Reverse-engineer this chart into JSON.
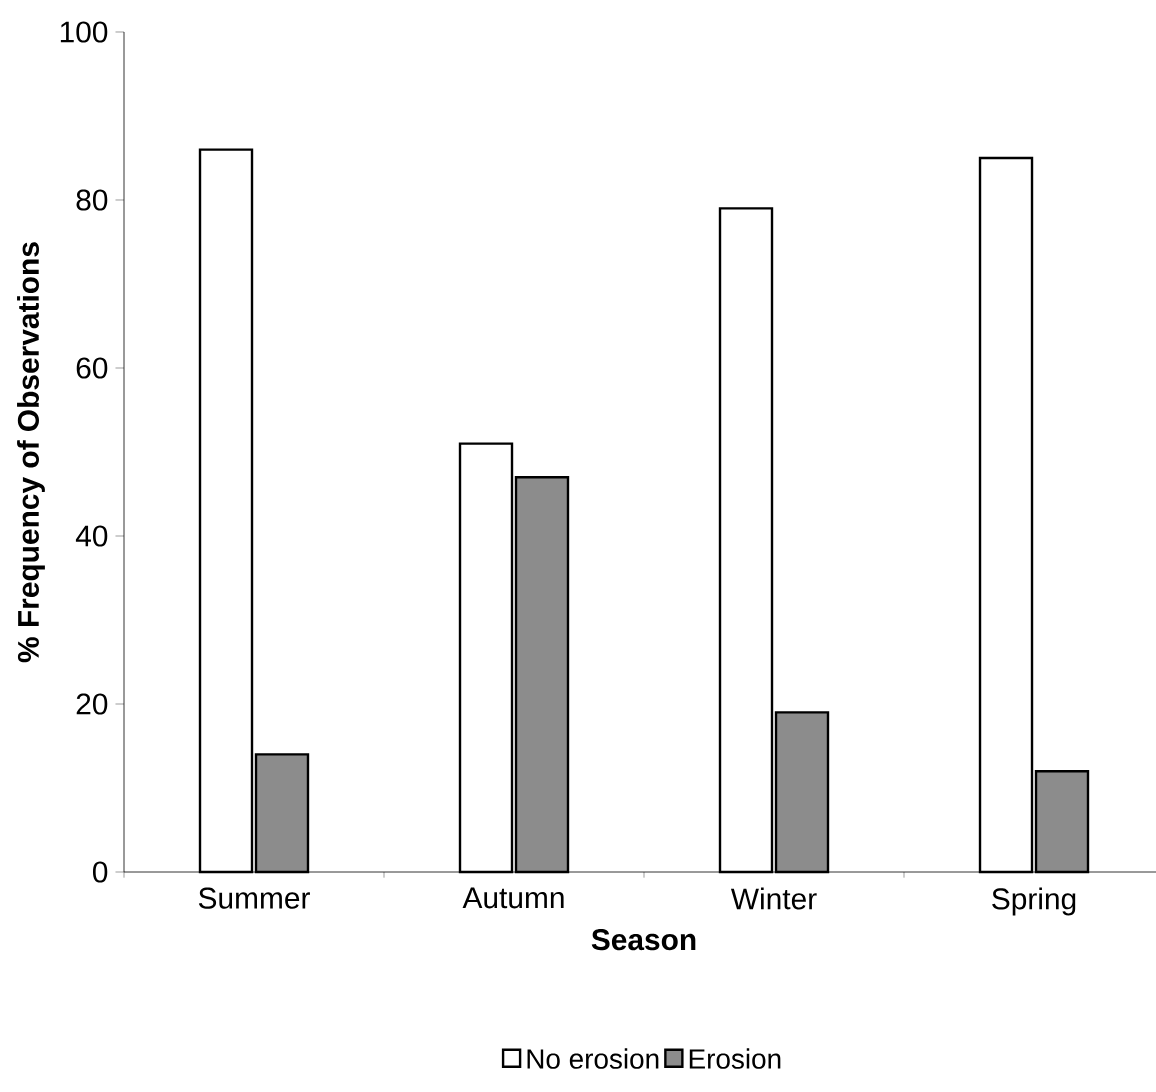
{
  "chart_data": {
    "type": "bar",
    "xlabel": "Season",
    "ylabel": "% Frequency of Observations",
    "categories": [
      "Summer",
      "Autumn",
      "Winter",
      "Spring"
    ],
    "series": [
      {
        "name": "No erosion",
        "color": "#ffffff",
        "values": [
          86,
          51,
          79,
          85
        ]
      },
      {
        "name": "Erosion",
        "color": "#8c8c8c",
        "values": [
          14,
          47,
          19,
          12
        ]
      }
    ],
    "ylim": [
      0,
      100
    ],
    "yticks": [
      0,
      20,
      40,
      60,
      80,
      100
    ],
    "grid": false,
    "legend": "bottom"
  }
}
